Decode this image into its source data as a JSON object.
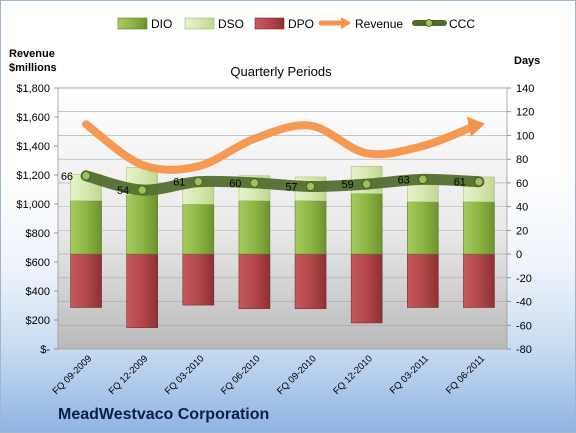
{
  "company_name": "MeadWestvaco Corporation",
  "chart_data": {
    "type": "bar",
    "title": "Quarterly Periods",
    "y_left_label_line1": "Revenue",
    "y_left_label_line2": "$millions",
    "y_right_label": "Days",
    "ylim_left": [
      0,
      1800
    ],
    "ylim_right": [
      -80,
      140
    ],
    "y_left_ticks": [
      "$-",
      "$200",
      "$400",
      "$600",
      "$800",
      "$1,000",
      "$1,200",
      "$1,400",
      "$1,600",
      "$1,800"
    ],
    "y_right_ticks": [
      "-80",
      "-60",
      "-40",
      "-20",
      "0",
      "20",
      "40",
      "60",
      "80",
      "100",
      "120",
      "140"
    ],
    "categories": [
      "FQ 09-2009",
      "FQ 12-2009",
      "FQ 03-2010",
      "FQ 06-2010",
      "FQ 09-2010",
      "FQ 12-2010",
      "FQ 03-2011",
      "FQ 06-2011"
    ],
    "legend": [
      "DIO",
      "DSO",
      "DPO",
      "Revenue",
      "CCC"
    ],
    "legend_placement": "top",
    "series": [
      {
        "name": "DIO",
        "axis": "right",
        "values": [
          45,
          50,
          42,
          45,
          45,
          51,
          44,
          44
        ]
      },
      {
        "name": "DSO",
        "axis": "right",
        "values": [
          22,
          23,
          20,
          21,
          20,
          23,
          22,
          21
        ]
      },
      {
        "name": "DPO",
        "axis": "right",
        "values": [
          -45,
          -62,
          -43,
          -46,
          -46,
          -58,
          -45,
          -45
        ]
      },
      {
        "name": "Revenue",
        "axis": "left",
        "values": [
          1550,
          1270,
          1260,
          1450,
          1540,
          1350,
          1400,
          1540
        ]
      },
      {
        "name": "CCC",
        "axis": "right",
        "values": [
          66,
          54,
          61,
          60,
          57,
          59,
          63,
          61
        ]
      }
    ],
    "data_labels": [
      "66",
      "54",
      "61",
      "60",
      "57",
      "59",
      "63",
      "61"
    ],
    "colors": {
      "DIO": "#8db543",
      "DSO": "#d7e8b0",
      "DPO": "#b3474b",
      "Revenue": "#f4934a",
      "CCC": "#4f6a2a"
    },
    "grid": true
  }
}
